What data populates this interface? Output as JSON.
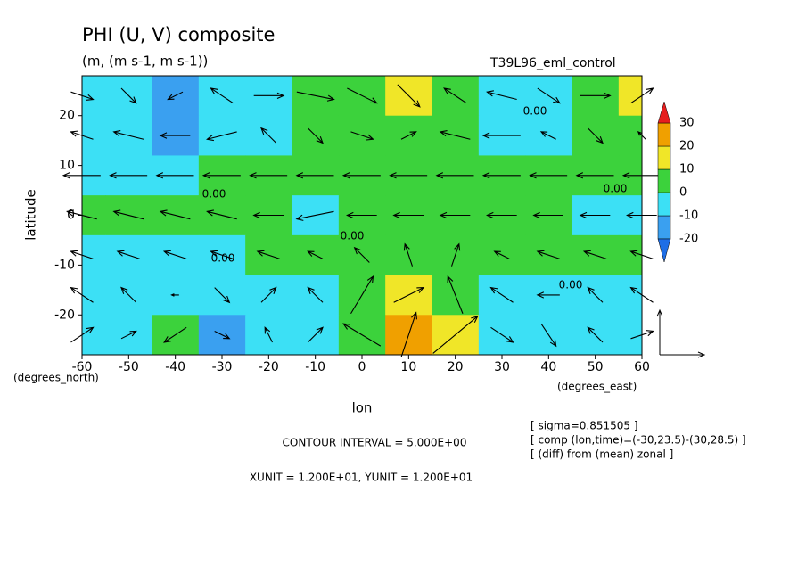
{
  "chart_data": {
    "type": "contour-vector",
    "title": "PHI (U, V) composite",
    "subtitle": "(m, (m s-1, m s-1))",
    "run_label": "T39L96_eml_control",
    "x_label": "lon",
    "y_label": "latitude",
    "x_unit_label": "(degrees_east)",
    "y_unit_label": "(degrees_north)",
    "xlim": [
      -60,
      60
    ],
    "ylim": [
      -28,
      28
    ],
    "xticks": [
      -60,
      -50,
      -40,
      -30,
      -20,
      -10,
      0,
      10,
      20,
      30,
      40,
      50,
      60
    ],
    "yticks": [
      -20,
      -10,
      0,
      10,
      20
    ],
    "lon": [
      -60,
      -50,
      -40,
      -30,
      -20,
      -10,
      0,
      10,
      20,
      30,
      40,
      50,
      60
    ],
    "lat": [
      24,
      16,
      8,
      0,
      -8,
      -16,
      -24
    ],
    "values": [
      [
        -5,
        -8,
        -12,
        -8,
        -3,
        3,
        5,
        12,
        5,
        -5,
        -8,
        3,
        12
      ],
      [
        -5,
        -6,
        -11,
        -7,
        -4,
        2,
        5,
        6,
        4,
        -3,
        -4,
        2,
        3
      ],
      [
        -3,
        -2,
        -1,
        1,
        2,
        3,
        4,
        5,
        4,
        3,
        2,
        2,
        1
      ],
      [
        2,
        3,
        3,
        4,
        2,
        -3,
        2,
        5,
        6,
        5,
        3,
        -3,
        -4
      ],
      [
        -3,
        -3,
        -2,
        -1,
        1,
        3,
        5,
        6,
        5,
        3,
        2,
        2,
        3
      ],
      [
        -5,
        -6,
        -5,
        -6,
        -4,
        -2,
        2,
        12,
        8,
        -3,
        -6,
        -5,
        -3
      ],
      [
        -6,
        -4,
        3,
        -12,
        -8,
        -3,
        2,
        22,
        10,
        -2,
        -5,
        -4,
        -2
      ]
    ],
    "contour_label": "0.00",
    "levels": [
      -20,
      -10,
      0,
      10,
      20,
      30
    ],
    "colors": [
      "#1e6ee6",
      "#3aa0f0",
      "#3ce0f5",
      "#3cd23c",
      "#f0e628",
      "#f0a000",
      "#e61e1e"
    ],
    "vectors": {
      "u": [
        [
          6,
          4,
          -4,
          -6,
          8,
          10,
          8,
          6,
          -6,
          -8,
          6,
          8,
          6
        ],
        [
          -6,
          -8,
          -8,
          -8,
          -4,
          4,
          6,
          4,
          -8,
          -10,
          -4,
          4,
          -2
        ],
        [
          -10,
          -10,
          -10,
          -10,
          -10,
          -10,
          -10,
          -10,
          -10,
          -10,
          -10,
          -10,
          -10
        ],
        [
          -8,
          -8,
          -8,
          -8,
          -8,
          -10,
          -8,
          -8,
          -8,
          -8,
          -8,
          -8,
          -8
        ],
        [
          -6,
          -6,
          -6,
          -6,
          -6,
          -4,
          -4,
          -2,
          2,
          -4,
          -6,
          -6,
          -6
        ],
        [
          -6,
          -4,
          -2,
          4,
          4,
          -4,
          6,
          8,
          -4,
          -6,
          -6,
          -4,
          -6
        ],
        [
          6,
          4,
          -6,
          4,
          -2,
          4,
          -10,
          4,
          12,
          6,
          4,
          -4,
          6
        ]
      ],
      "v": [
        [
          -2,
          -4,
          -2,
          4,
          0,
          -2,
          -4,
          -6,
          4,
          2,
          -4,
          0,
          4
        ],
        [
          2,
          2,
          0,
          -2,
          4,
          -4,
          -2,
          2,
          2,
          0,
          2,
          -4,
          2
        ],
        [
          0,
          0,
          0,
          0,
          0,
          0,
          0,
          0,
          0,
          0,
          0,
          0,
          0
        ],
        [
          2,
          2,
          2,
          2,
          0,
          -2,
          0,
          0,
          0,
          0,
          0,
          0,
          0
        ],
        [
          2,
          2,
          2,
          2,
          2,
          2,
          4,
          6,
          6,
          2,
          2,
          2,
          2
        ],
        [
          4,
          4,
          0,
          -4,
          4,
          4,
          10,
          4,
          10,
          4,
          0,
          4,
          4
        ],
        [
          4,
          2,
          -4,
          -2,
          4,
          4,
          6,
          12,
          10,
          -4,
          -6,
          4,
          2
        ]
      ]
    },
    "vector_unit": 12,
    "contour_interval_text": "CONTOUR INTERVAL = 5.000E+00",
    "unit_text": "XUNIT = 1.200E+01, YUNIT = 1.200E+01",
    "notes": [
      "[ sigma=0.851505 ]",
      "[ comp (lon,time)=(-30,23.5)-(30,28.5) ]",
      "[ (diff) from (mean) zonal ]"
    ]
  }
}
